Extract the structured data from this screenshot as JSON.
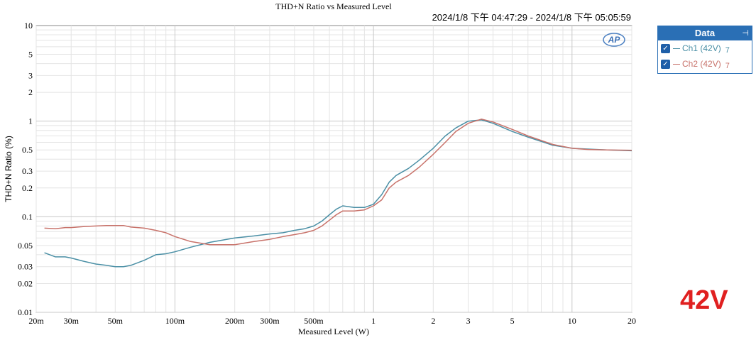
{
  "chart_data": {
    "type": "line",
    "title": "THD+N Ratio vs Measured Level",
    "timestamp": "2024/1/8 下午 04:47:29 - 2024/1/8 下午 05:05:59",
    "xlabel": "Measured Level (W)",
    "ylabel": "THD+N Ratio (%)",
    "xscale": "log",
    "yscale": "log",
    "xlim": [
      0.02,
      20
    ],
    "ylim": [
      0.01,
      10
    ],
    "grid": true,
    "xticks": [
      {
        "v": 0.02,
        "label": "20m"
      },
      {
        "v": 0.03,
        "label": "30m"
      },
      {
        "v": 0.05,
        "label": "50m"
      },
      {
        "v": 0.1,
        "label": "100m"
      },
      {
        "v": 0.2,
        "label": "200m"
      },
      {
        "v": 0.3,
        "label": "300m"
      },
      {
        "v": 0.5,
        "label": "500m"
      },
      {
        "v": 1,
        "label": "1"
      },
      {
        "v": 2,
        "label": "2"
      },
      {
        "v": 3,
        "label": "3"
      },
      {
        "v": 5,
        "label": "5"
      },
      {
        "v": 10,
        "label": "10"
      },
      {
        "v": 20,
        "label": "20"
      }
    ],
    "yticks": [
      {
        "v": 10,
        "label": "10"
      },
      {
        "v": 5,
        "label": "5"
      },
      {
        "v": 3,
        "label": "3"
      },
      {
        "v": 2,
        "label": "2"
      },
      {
        "v": 1,
        "label": "1"
      },
      {
        "v": 0.5,
        "label": "0.5"
      },
      {
        "v": 0.3,
        "label": "0.3"
      },
      {
        "v": 0.2,
        "label": "0.2"
      },
      {
        "v": 0.1,
        "label": "0.1"
      },
      {
        "v": 0.05,
        "label": "0.05"
      },
      {
        "v": 0.03,
        "label": "0.03"
      },
      {
        "v": 0.02,
        "label": "0.02"
      },
      {
        "v": 0.01,
        "label": "0.01"
      }
    ],
    "legend_position": "outside-right",
    "series": [
      {
        "name": "Ch1 (42V)",
        "color": "#4a8fa5",
        "x": [
          0.022,
          0.025,
          0.028,
          0.03,
          0.035,
          0.04,
          0.045,
          0.05,
          0.055,
          0.06,
          0.07,
          0.08,
          0.09,
          0.1,
          0.12,
          0.15,
          0.2,
          0.25,
          0.3,
          0.35,
          0.4,
          0.45,
          0.5,
          0.55,
          0.6,
          0.65,
          0.7,
          0.8,
          0.9,
          1.0,
          1.1,
          1.2,
          1.3,
          1.5,
          1.7,
          2.0,
          2.3,
          2.6,
          3.0,
          3.5,
          4.0,
          5.0,
          6.0,
          8.0,
          10.0,
          12.0,
          15.0,
          20.0
        ],
        "y": [
          0.042,
          0.038,
          0.038,
          0.037,
          0.034,
          0.032,
          0.031,
          0.03,
          0.03,
          0.031,
          0.035,
          0.04,
          0.041,
          0.043,
          0.048,
          0.054,
          0.06,
          0.063,
          0.066,
          0.068,
          0.072,
          0.075,
          0.08,
          0.09,
          0.105,
          0.12,
          0.13,
          0.125,
          0.125,
          0.135,
          0.17,
          0.23,
          0.27,
          0.32,
          0.39,
          0.52,
          0.7,
          0.85,
          1.0,
          1.03,
          0.95,
          0.78,
          0.68,
          0.56,
          0.52,
          0.51,
          0.5,
          0.49
        ]
      },
      {
        "name": "Ch2 (42V)",
        "color": "#c8726a",
        "x": [
          0.022,
          0.025,
          0.028,
          0.03,
          0.035,
          0.04,
          0.045,
          0.05,
          0.055,
          0.06,
          0.07,
          0.08,
          0.09,
          0.1,
          0.12,
          0.15,
          0.2,
          0.25,
          0.3,
          0.35,
          0.4,
          0.45,
          0.5,
          0.55,
          0.6,
          0.65,
          0.7,
          0.8,
          0.9,
          1.0,
          1.1,
          1.2,
          1.3,
          1.5,
          1.7,
          2.0,
          2.3,
          2.6,
          3.0,
          3.5,
          4.0,
          5.0,
          6.0,
          8.0,
          10.0,
          12.0,
          15.0,
          20.0
        ],
        "y": [
          0.076,
          0.075,
          0.077,
          0.077,
          0.079,
          0.08,
          0.081,
          0.081,
          0.081,
          0.078,
          0.076,
          0.072,
          0.068,
          0.062,
          0.055,
          0.051,
          0.051,
          0.055,
          0.058,
          0.062,
          0.065,
          0.068,
          0.072,
          0.08,
          0.092,
          0.105,
          0.115,
          0.115,
          0.118,
          0.13,
          0.15,
          0.2,
          0.23,
          0.27,
          0.33,
          0.45,
          0.6,
          0.78,
          0.95,
          1.05,
          0.98,
          0.82,
          0.7,
          0.57,
          0.52,
          0.505,
          0.5,
          0.495
        ]
      }
    ]
  },
  "legend": {
    "title": "Data",
    "pin": "⊣",
    "items": [
      {
        "label": "Ch1 (42V)",
        "num": "7",
        "color": "#4a8fa5"
      },
      {
        "label": "Ch2 (42V)",
        "num": "7",
        "color": "#c8726a"
      }
    ]
  },
  "logo": {
    "text": "AP"
  },
  "annotation": "42V"
}
